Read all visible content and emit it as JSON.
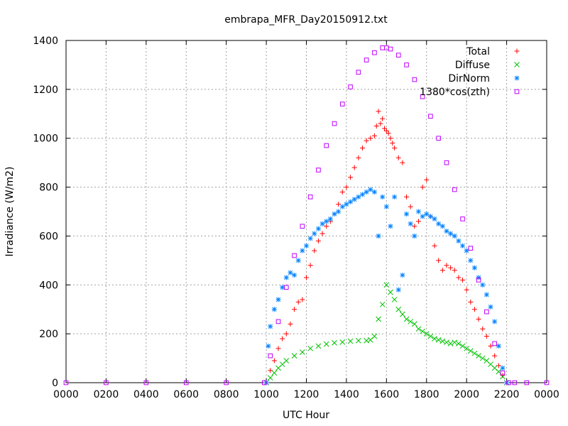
{
  "chart_data": {
    "type": "scatter",
    "title": "embrapa_MFR_Day20150912.txt",
    "xlabel": "UTC Hour",
    "ylabel": "Irradiance (W/m2)",
    "xlim": [
      0,
      24
    ],
    "ylim": [
      0,
      1400
    ],
    "x_ticks": [
      0,
      2,
      4,
      6,
      8,
      10,
      12,
      14,
      16,
      18,
      20,
      22,
      24
    ],
    "x_tick_labels": [
      "0000",
      "0200",
      "0400",
      "0600",
      "0800",
      "1000",
      "1200",
      "1400",
      "1600",
      "1800",
      "2000",
      "2200",
      "0000"
    ],
    "y_ticks": [
      0,
      200,
      400,
      600,
      800,
      1000,
      1200,
      1400
    ],
    "y_tick_labels": [
      "0",
      "200",
      "400",
      "600",
      "800",
      "1000",
      "1200",
      "1400"
    ],
    "grid": true,
    "legend_position": "top-right",
    "series": [
      {
        "name": "Total",
        "color": "#ff0000",
        "marker": "plus",
        "x": [
          10.0,
          10.2,
          10.4,
          10.6,
          10.8,
          11.0,
          11.2,
          11.4,
          11.6,
          11.8,
          12.0,
          12.2,
          12.4,
          12.6,
          12.8,
          13.0,
          13.2,
          13.4,
          13.6,
          13.8,
          14.0,
          14.2,
          14.4,
          14.6,
          14.8,
          15.0,
          15.2,
          15.4,
          15.5,
          15.6,
          15.7,
          15.8,
          15.9,
          16.0,
          16.1,
          16.2,
          16.3,
          16.4,
          16.6,
          16.8,
          17.0,
          17.2,
          17.4,
          17.6,
          17.8,
          18.0,
          18.2,
          18.4,
          18.6,
          18.8,
          19.0,
          19.2,
          19.4,
          19.6,
          19.8,
          20.0,
          20.2,
          20.4,
          20.6,
          20.8,
          21.0,
          21.2,
          21.4,
          21.6,
          21.8,
          22.0
        ],
        "values": [
          0,
          50,
          90,
          140,
          180,
          200,
          240,
          300,
          330,
          340,
          430,
          480,
          540,
          580,
          610,
          640,
          660,
          690,
          730,
          780,
          800,
          840,
          880,
          920,
          960,
          990,
          1000,
          1010,
          1050,
          1110,
          1060,
          1080,
          1040,
          1030,
          1020,
          1000,
          980,
          960,
          920,
          900,
          760,
          720,
          640,
          660,
          800,
          830,
          680,
          560,
          500,
          460,
          480,
          470,
          460,
          430,
          420,
          380,
          330,
          300,
          260,
          220,
          190,
          150,
          110,
          70,
          30,
          0
        ]
      },
      {
        "name": "Diffuse",
        "color": "#00c000",
        "marker": "cross",
        "x": [
          10.0,
          10.2,
          10.4,
          10.6,
          10.8,
          11.0,
          11.4,
          11.8,
          12.2,
          12.6,
          13.0,
          13.4,
          13.8,
          14.2,
          14.6,
          15.0,
          15.2,
          15.4,
          15.6,
          15.8,
          16.0,
          16.2,
          16.4,
          16.6,
          16.8,
          17.0,
          17.2,
          17.4,
          17.6,
          17.8,
          18.0,
          18.2,
          18.4,
          18.6,
          18.8,
          19.0,
          19.2,
          19.4,
          19.6,
          19.8,
          20.0,
          20.2,
          20.4,
          20.6,
          20.8,
          21.0,
          21.2,
          21.4,
          21.6,
          21.8,
          22.0
        ],
        "values": [
          0,
          20,
          40,
          60,
          75,
          90,
          110,
          125,
          140,
          150,
          158,
          163,
          166,
          170,
          172,
          172,
          175,
          190,
          260,
          320,
          400,
          370,
          340,
          300,
          280,
          260,
          250,
          240,
          220,
          210,
          200,
          190,
          180,
          175,
          170,
          165,
          160,
          165,
          160,
          150,
          140,
          130,
          120,
          110,
          100,
          90,
          75,
          60,
          45,
          25,
          0
        ]
      },
      {
        "name": "DirNorm",
        "color": "#0080ff",
        "marker": "star",
        "x": [
          10.0,
          10.1,
          10.2,
          10.4,
          10.6,
          10.8,
          11.0,
          11.2,
          11.4,
          11.6,
          11.8,
          12.0,
          12.2,
          12.4,
          12.6,
          12.8,
          13.0,
          13.2,
          13.4,
          13.6,
          13.8,
          14.0,
          14.2,
          14.4,
          14.6,
          14.8,
          15.0,
          15.2,
          15.4,
          15.6,
          15.8,
          16.0,
          16.2,
          16.4,
          16.6,
          16.8,
          17.0,
          17.2,
          17.4,
          17.6,
          17.8,
          18.0,
          18.2,
          18.4,
          18.6,
          18.8,
          19.0,
          19.2,
          19.4,
          19.6,
          19.8,
          20.0,
          20.2,
          20.4,
          20.6,
          20.8,
          21.0,
          21.2,
          21.4,
          21.6,
          21.8,
          22.0
        ],
        "values": [
          0,
          150,
          230,
          300,
          340,
          390,
          430,
          450,
          440,
          500,
          540,
          560,
          590,
          610,
          630,
          650,
          660,
          670,
          690,
          700,
          720,
          730,
          740,
          750,
          760,
          770,
          780,
          790,
          780,
          600,
          760,
          720,
          640,
          760,
          380,
          440,
          690,
          650,
          600,
          700,
          680,
          690,
          680,
          670,
          650,
          640,
          620,
          610,
          600,
          580,
          560,
          540,
          500,
          470,
          430,
          400,
          360,
          310,
          250,
          150,
          60,
          0
        ]
      },
      {
        "name": "1380*cos(zth)",
        "color": "#c000ff",
        "marker": "square",
        "x": [
          0,
          2,
          4,
          6,
          8,
          9.9,
          10.2,
          10.6,
          11.0,
          11.4,
          11.8,
          12.2,
          12.6,
          13.0,
          13.4,
          13.8,
          14.2,
          14.6,
          15.0,
          15.4,
          15.8,
          16.0,
          16.2,
          16.6,
          17.0,
          17.4,
          17.8,
          18.2,
          18.6,
          19.0,
          19.4,
          19.8,
          20.2,
          20.6,
          21.0,
          21.4,
          21.8,
          22.1,
          22.4,
          23,
          24
        ],
        "values": [
          0,
          0,
          0,
          0,
          0,
          0,
          110,
          250,
          390,
          520,
          640,
          760,
          870,
          970,
          1060,
          1140,
          1210,
          1270,
          1320,
          1350,
          1370,
          1370,
          1365,
          1340,
          1300,
          1240,
          1170,
          1090,
          1000,
          900,
          790,
          670,
          550,
          420,
          290,
          160,
          40,
          0,
          0,
          0,
          0
        ]
      }
    ]
  }
}
